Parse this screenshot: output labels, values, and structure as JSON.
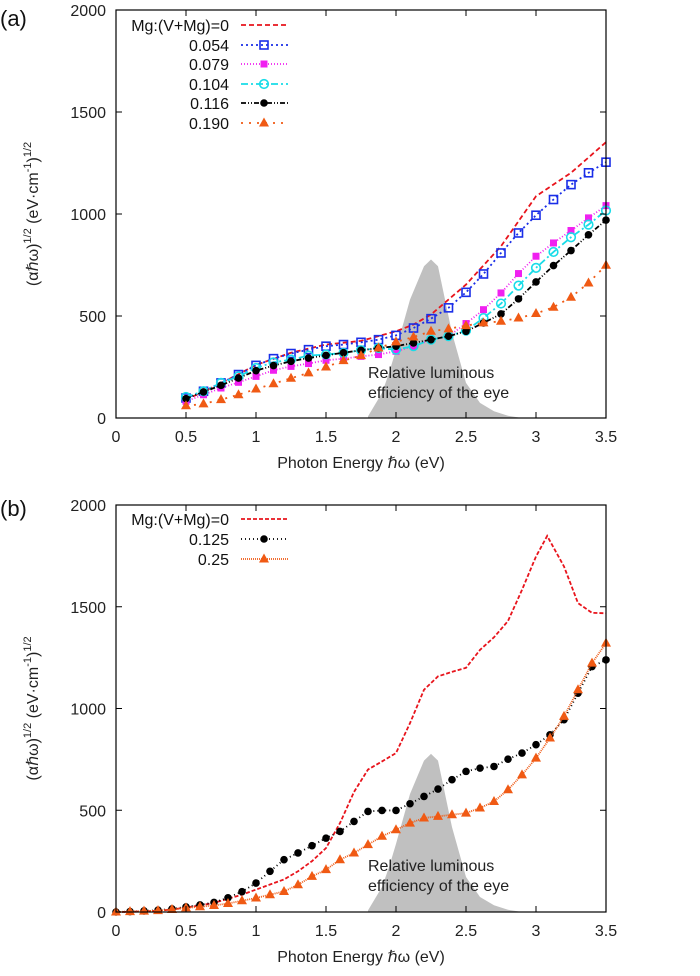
{
  "chart_data": [
    {
      "type": "line",
      "panel_label": "(a)",
      "xlabel": "Photon Energy ℏω (eV)",
      "ylabel": {
        "base": "(αℏω)",
        "exp1": "1/2",
        "unit": " (eV·cm",
        "unit_exp": "-1",
        "close": ")",
        "exp2": "1/2"
      },
      "xlim": [
        0,
        3.5
      ],
      "ylim": [
        0,
        2000
      ],
      "xticks": [
        "0",
        "0.5",
        "1",
        "1.5",
        "2",
        "2.5",
        "3",
        "3.5"
      ],
      "yticks": [
        "0",
        "500",
        "1000",
        "1500",
        "2000"
      ],
      "grid": false,
      "legend_position": "top-left",
      "annotation": [
        "Relative luminous",
        "efficiency of the eye"
      ],
      "luminosity": {
        "color": "#c0c0c0",
        "x": [
          1.8,
          1.9,
          1.95,
          2.0,
          2.1,
          2.2,
          2.25,
          2.3,
          2.4,
          2.5,
          2.6,
          2.7,
          2.8,
          2.9
        ],
        "y": [
          8,
          123,
          220,
          335,
          580,
          744,
          777,
          744,
          417,
          172,
          74,
          33,
          11,
          0
        ]
      },
      "series": [
        {
          "name": "Mg:(V+Mg)=0",
          "color": "#e8141c",
          "marker": "none",
          "dash": "5,3",
          "x": [
            0.5,
            0.75,
            1.0,
            1.25,
            1.5,
            1.75,
            2.0,
            2.125,
            2.25,
            2.5,
            2.75,
            3.0,
            3.25,
            3.5
          ],
          "y": [
            90,
            170,
            260,
            320,
            360,
            378,
            425,
            458,
            507,
            654,
            842,
            1087,
            1202,
            1352
          ]
        },
        {
          "name": "0.054",
          "color": "#1a2ee8",
          "marker": "open-square",
          "dash": "2,3",
          "x": [
            0.5,
            0.625,
            0.75,
            0.875,
            1.0,
            1.125,
            1.25,
            1.375,
            1.5,
            1.625,
            1.75,
            1.875,
            2.0,
            2.125,
            2.25,
            2.375,
            2.5,
            2.625,
            2.75,
            2.875,
            3.0,
            3.125,
            3.25,
            3.375,
            3.5
          ],
          "y": [
            98,
            131,
            172,
            213,
            258,
            291,
            316,
            335,
            352,
            360,
            371,
            384,
            405,
            441,
            487,
            540,
            616,
            706,
            809,
            907,
            994,
            1071,
            1144,
            1202,
            1254
          ]
        },
        {
          "name": "0.079",
          "color": "#f020f0",
          "marker": "filled-square",
          "dash": "1,2",
          "x": [
            0.5,
            0.625,
            0.75,
            0.875,
            1.0,
            1.125,
            1.25,
            1.375,
            1.5,
            1.625,
            1.75,
            1.875,
            2.0,
            2.125,
            2.25,
            2.375,
            2.5,
            2.625,
            2.75,
            2.875,
            3.0,
            3.125,
            3.25,
            3.375,
            3.5
          ],
          "y": [
            82,
            114,
            147,
            175,
            204,
            234,
            253,
            267,
            283,
            291,
            302,
            311,
            327,
            352,
            384,
            401,
            463,
            531,
            613,
            708,
            793,
            858,
            919,
            981,
            1041
          ]
        },
        {
          "name": "0.104",
          "color": "#18dce8",
          "marker": "open-circle",
          "dash": "7,3,2,3",
          "x": [
            0.5,
            0.625,
            0.75,
            0.875,
            1.0,
            1.125,
            1.25,
            1.375,
            1.5,
            1.625,
            1.75,
            1.875,
            2.0,
            2.125,
            2.25,
            2.375,
            2.5,
            2.625,
            2.75,
            2.875,
            3.0,
            3.125,
            3.25,
            3.375,
            3.5
          ],
          "y": [
            103,
            131,
            172,
            204,
            245,
            273,
            286,
            306,
            311,
            319,
            332,
            343,
            335,
            352,
            384,
            401,
            428,
            490,
            561,
            649,
            736,
            814,
            886,
            948,
            1017
          ]
        },
        {
          "name": "0.116",
          "color": "#000000",
          "marker": "filled-circle",
          "dash": "5,2,1,2,1,2",
          "x": [
            0.5,
            0.625,
            0.75,
            0.875,
            1.0,
            1.125,
            1.25,
            1.375,
            1.5,
            1.625,
            1.75,
            1.875,
            2.0,
            2.125,
            2.25,
            2.375,
            2.5,
            2.625,
            2.75,
            2.875,
            3.0,
            3.125,
            3.25,
            3.375,
            3.5
          ],
          "y": [
            95,
            128,
            160,
            196,
            232,
            257,
            278,
            294,
            307,
            320,
            332,
            343,
            352,
            368,
            384,
            401,
            425,
            466,
            510,
            584,
            667,
            747,
            821,
            898,
            970
          ]
        },
        {
          "name": "0.190",
          "color": "#f05a14",
          "marker": "filled-triangle",
          "dash": "2,6",
          "x": [
            0.5,
            0.625,
            0.75,
            0.875,
            1.0,
            1.125,
            1.25,
            1.375,
            1.5,
            1.625,
            1.75,
            1.875,
            2.0,
            2.125,
            2.25,
            2.375,
            2.5,
            2.625,
            2.75,
            2.875,
            3.0,
            3.125,
            3.25,
            3.375,
            3.5
          ],
          "y": [
            60,
            69,
            90,
            114,
            142,
            168,
            195,
            221,
            250,
            281,
            306,
            343,
            373,
            397,
            425,
            437,
            453,
            466,
            474,
            490,
            512,
            543,
            592,
            662,
            749
          ]
        }
      ]
    },
    {
      "type": "line",
      "panel_label": "(b)",
      "xlabel": "Photon Energy ℏω (eV)",
      "ylabel": {
        "base": "(αℏω)",
        "exp1": "1/2",
        "unit": " (eV·cm",
        "unit_exp": "-1",
        "close": ")",
        "exp2": "1/2"
      },
      "xlim": [
        0,
        3.5
      ],
      "ylim": [
        0,
        2000
      ],
      "xticks": [
        "0",
        "0.5",
        "1",
        "1.5",
        "2",
        "2.5",
        "3",
        "3.5"
      ],
      "yticks": [
        "0",
        "500",
        "1000",
        "1500",
        "2000"
      ],
      "grid": false,
      "legend_position": "top-left",
      "annotation": [
        "Relative luminous",
        "efficiency of the eye"
      ],
      "luminosity": {
        "color": "#c0c0c0",
        "x": [
          1.8,
          1.9,
          1.95,
          2.0,
          2.1,
          2.2,
          2.25,
          2.3,
          2.4,
          2.5,
          2.6,
          2.7,
          2.8,
          2.9
        ],
        "y": [
          8,
          123,
          220,
          335,
          580,
          744,
          777,
          744,
          417,
          172,
          74,
          33,
          11,
          0
        ]
      },
      "series": [
        {
          "name": "Mg:(V+Mg)=0",
          "color": "#e8141c",
          "marker": "none",
          "dash": "4,2",
          "x": [
            0,
            0.1,
            0.2,
            0.3,
            0.4,
            0.5,
            0.6,
            0.7,
            0.8,
            0.9,
            1.0,
            1.1,
            1.2,
            1.3,
            1.4,
            1.5,
            1.6,
            1.7,
            1.8,
            1.9,
            2.0,
            2.1,
            2.2,
            2.3,
            2.4,
            2.5,
            2.6,
            2.7,
            2.8,
            2.9,
            3.0,
            3.08,
            3.2,
            3.3,
            3.4,
            3.5
          ],
          "y": [
            0,
            1,
            3,
            6,
            12,
            22,
            32,
            45,
            65,
            85,
            110,
            135,
            160,
            200,
            250,
            314,
            437,
            590,
            700,
            740,
            781,
            928,
            1092,
            1158,
            1180,
            1200,
            1288,
            1350,
            1430,
            1583,
            1747,
            1848,
            1698,
            1518,
            1470,
            1468
          ]
        },
        {
          "name": "0.125",
          "color": "#000000",
          "marker": "filled-circle",
          "dash": "1,3",
          "x": [
            0,
            0.1,
            0.2,
            0.3,
            0.4,
            0.5,
            0.6,
            0.7,
            0.8,
            0.9,
            1.0,
            1.1,
            1.2,
            1.3,
            1.4,
            1.5,
            1.6,
            1.7,
            1.8,
            1.9,
            2.0,
            2.1,
            2.2,
            2.3,
            2.4,
            2.5,
            2.6,
            2.7,
            2.8,
            2.9,
            3.0,
            3.1,
            3.2,
            3.3,
            3.4,
            3.5
          ],
          "y": [
            0,
            2,
            5,
            9,
            15,
            25,
            35,
            47,
            70,
            100,
            142,
            200,
            257,
            290,
            326,
            363,
            396,
            445,
            494,
            499,
            499,
            532,
            568,
            604,
            650,
            691,
            707,
            715,
            751,
            781,
            822,
            871,
            945,
            1075,
            1206,
            1239
          ]
        },
        {
          "name": "0.25",
          "color": "#f05a14",
          "marker": "filled-triangle",
          "dash": "1,1",
          "x": [
            0,
            0.1,
            0.2,
            0.3,
            0.4,
            0.5,
            0.6,
            0.7,
            0.8,
            0.9,
            1.0,
            1.1,
            1.2,
            1.3,
            1.4,
            1.5,
            1.6,
            1.7,
            1.8,
            1.9,
            2.0,
            2.1,
            2.2,
            2.3,
            2.4,
            2.5,
            2.6,
            2.7,
            2.8,
            2.9,
            3.0,
            3.1,
            3.2,
            3.3,
            3.4,
            3.5
          ],
          "y": [
            0,
            2,
            4,
            7,
            12,
            20,
            26,
            32,
            42,
            55,
            69,
            85,
            101,
            134,
            175,
            208,
            257,
            290,
            331,
            372,
            404,
            437,
            462,
            470,
            478,
            486,
            511,
            543,
            601,
            674,
            756,
            855,
            961,
            1092,
            1223,
            1321
          ]
        }
      ]
    }
  ]
}
